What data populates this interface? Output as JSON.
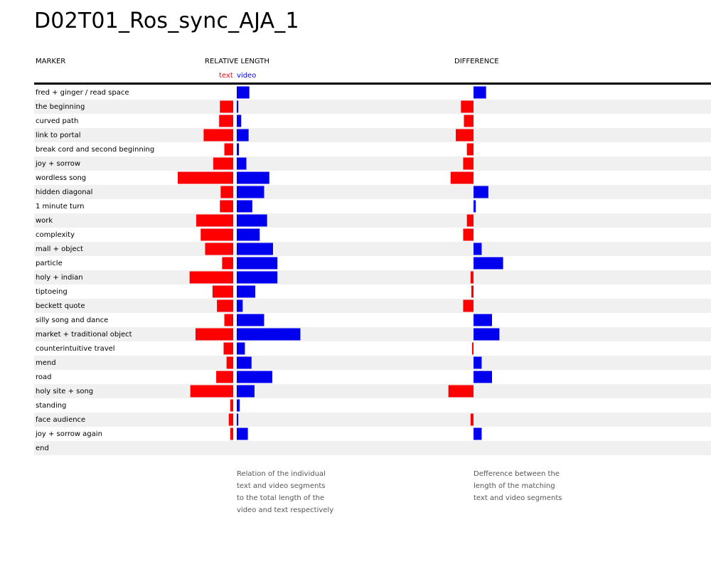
{
  "title": "D02T01_Ros_sync_AJA_1",
  "headers": {
    "marker": "MARKER",
    "relative_length": "RELATIVE LENGTH",
    "difference": "DIFFERENCE"
  },
  "legend": {
    "text": "text",
    "video": "video"
  },
  "colors": {
    "text": "#ff0000",
    "video": "#0000ee",
    "stripe": "#f0f0f0"
  },
  "captions": {
    "relative": [
      "Relation of the individual",
      "text and video segments",
      "to the total length of the",
      "video and text respectively"
    ],
    "difference": [
      "Defference between the",
      "length of the matching",
      "text and video segments"
    ]
  },
  "chart_data": {
    "type": "bar",
    "description_units": "relative share of total length (percent), and signed difference (percent)",
    "categories": [
      "fred + ginger / read space",
      "the beginning",
      "curved path",
      "link to portal",
      "break cord and second beginning",
      "joy + sorrow",
      "wordless song",
      "hidden diagonal",
      "1 minute turn",
      "work",
      "complexity",
      "mall + object",
      "particle",
      "holy + indian",
      "tiptoeing",
      "beckett quote",
      "silly song and dance",
      "market + traditional object",
      "counterintuitive travel",
      "mend",
      "road",
      "holy site + song",
      "standing",
      "face audience",
      "joy + sorrow again",
      "end"
    ],
    "series": [
      {
        "name": "text",
        "values": [
          0.0,
          1.8,
          1.9,
          4.0,
          1.2,
          2.7,
          7.5,
          1.7,
          1.8,
          5.0,
          4.4,
          3.8,
          1.5,
          5.9,
          2.8,
          2.2,
          1.2,
          5.1,
          1.3,
          0.9,
          2.3,
          5.8,
          0.4,
          0.6,
          0.4,
          0.0
        ]
      },
      {
        "name": "video",
        "values": [
          1.7,
          0.2,
          0.6,
          1.6,
          0.3,
          1.3,
          4.4,
          3.7,
          2.1,
          4.1,
          3.1,
          4.9,
          5.5,
          5.5,
          2.5,
          0.8,
          3.7,
          8.6,
          1.1,
          2.0,
          4.8,
          2.4,
          0.4,
          0.2,
          1.5,
          0.0
        ]
      }
    ],
    "difference": [
      1.7,
      -1.7,
      -1.3,
      -2.4,
      -0.9,
      -1.4,
      -3.1,
      2.0,
      0.3,
      -0.9,
      -1.4,
      1.1,
      4.0,
      -0.4,
      -0.3,
      -1.4,
      2.5,
      3.5,
      -0.2,
      1.1,
      2.5,
      -3.4,
      0.0,
      -0.4,
      1.1,
      0.0
    ]
  }
}
